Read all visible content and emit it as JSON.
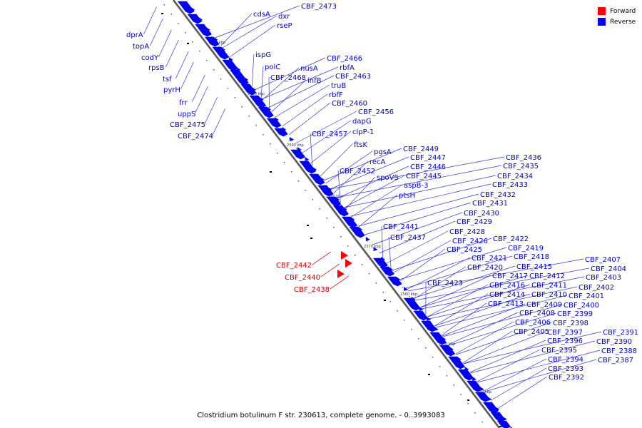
{
  "caption": "Clostridium botulinum F str. 230613, complete genome. - 0..3993083",
  "legend": [
    {
      "label": "Forward",
      "color": "#ff0000"
    },
    {
      "label": "Reverse",
      "color": "#0000ff"
    }
  ],
  "colors": {
    "forward": "#ff0000",
    "reverse": "#0000ff",
    "forward_text": "#cc0000",
    "reverse_text": "#0000cc"
  },
  "ticks": [
    "2610 kbp",
    "2600 kbp",
    "2590 kbp",
    "2580 kbp",
    "2570 kbp",
    "2560 kbp",
    "2550 kbp",
    "2540 kbp"
  ],
  "genes_reverse": [
    "CBF_2473",
    "cdsA",
    "dxr",
    "rseP",
    "dprA",
    "topA",
    "codY",
    "rpsB",
    "tsf",
    "pyrH",
    "frr",
    "uppS",
    "CBF_2475",
    "CBF_2474",
    "ispG",
    "polC",
    "CBF_2468",
    "nusA",
    "infB",
    "CBF_2466",
    "rbfA",
    "CBF_2463",
    "truB",
    "rbfF",
    "CBF_2460",
    "CBF_2456",
    "dapG",
    "clpP-1",
    "CBF_2457",
    "ftsK",
    "pgsA",
    "recA",
    "CBF_2452",
    "spoVS",
    "CBF_2449",
    "CBF_2447",
    "CBF_2446",
    "CBF_2445",
    "aspB-3",
    "ptsH",
    "CBF_2441",
    "CBF_2437",
    "CBF_2436",
    "CBF_2435",
    "CBF_2434",
    "CBF_2433",
    "CBF_2432",
    "CBF_2431",
    "CBF_2430",
    "CBF_2429",
    "CBF_2428",
    "CBF_2426",
    "CBF_2425",
    "CBF_2422",
    "CBF_2419",
    "CBF_2418",
    "CBF_2421",
    "CBF_2420",
    "CBF_2415",
    "CBF_2417",
    "CBF_2412",
    "CBF_2416",
    "CBF_2411",
    "CBF_2414",
    "CBF_2410",
    "CBF_2413",
    "CBF_2409",
    "CBF_2423",
    "CBF_2408",
    "CBF_2406",
    "CBF_2405",
    "CBF_2407",
    "CBF_2404",
    "CBF_2403",
    "CBF_2402",
    "CBF_2401",
    "CBF_2400",
    "CBF_2399",
    "CBF_2398",
    "CBF_2397",
    "CBF_2396",
    "CBF_2395",
    "CBF_2394",
    "CBF_2393",
    "CBF_2392",
    "CBF_2391",
    "CBF_2390",
    "CBF_2388",
    "CBF_2387"
  ],
  "genes_forward": [
    "CBF_2442",
    "CBF_2440",
    "CBF_2438"
  ]
}
